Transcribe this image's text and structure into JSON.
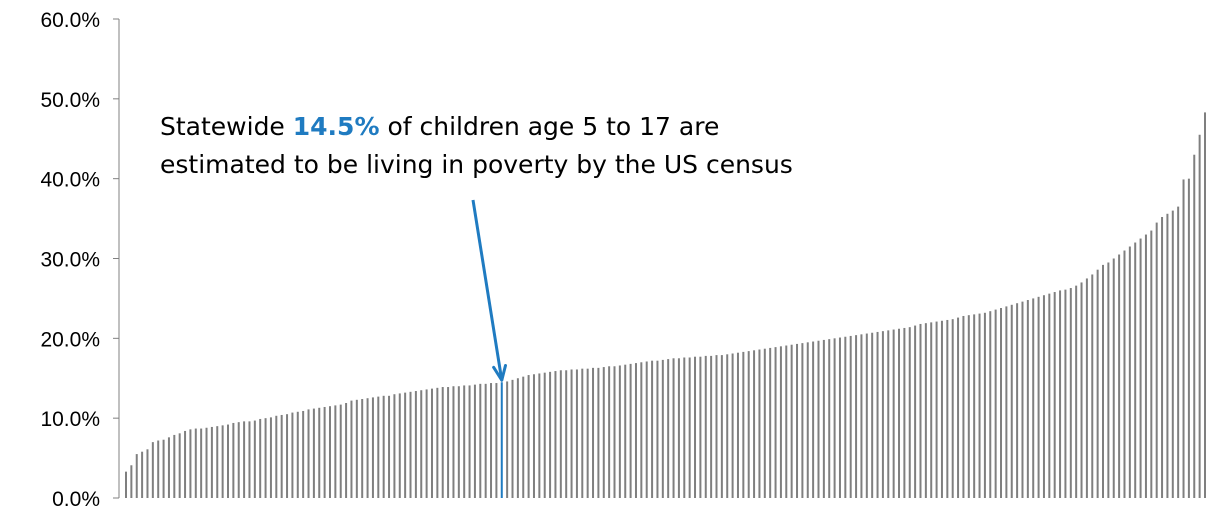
{
  "chart_data": {
    "type": "bar",
    "title": "",
    "xlabel": "",
    "ylabel": "",
    "ylim": [
      0,
      0.6
    ],
    "y_ticks": [
      {
        "value": 0.0,
        "label": "0.0%"
      },
      {
        "value": 0.1,
        "label": "10.0%"
      },
      {
        "value": 0.2,
        "label": "20.0%"
      },
      {
        "value": 0.3,
        "label": "30.0%"
      },
      {
        "value": 0.4,
        "label": "40.0%"
      },
      {
        "value": 0.5,
        "label": "50.0%"
      },
      {
        "value": 0.6,
        "label": "60.0%"
      }
    ],
    "grid": false,
    "x_tick_labels": false,
    "highlight_value": 0.145,
    "values": [
      0.033,
      0.041,
      0.055,
      0.058,
      0.061,
      0.07,
      0.072,
      0.073,
      0.076,
      0.079,
      0.081,
      0.084,
      0.086,
      0.087,
      0.087,
      0.088,
      0.089,
      0.09,
      0.091,
      0.092,
      0.094,
      0.095,
      0.096,
      0.096,
      0.097,
      0.099,
      0.1,
      0.101,
      0.103,
      0.104,
      0.105,
      0.107,
      0.108,
      0.109,
      0.111,
      0.112,
      0.113,
      0.114,
      0.115,
      0.116,
      0.117,
      0.119,
      0.122,
      0.123,
      0.124,
      0.125,
      0.126,
      0.127,
      0.128,
      0.128,
      0.13,
      0.131,
      0.132,
      0.133,
      0.134,
      0.135,
      0.136,
      0.137,
      0.138,
      0.139,
      0.139,
      0.14,
      0.14,
      0.141,
      0.141,
      0.142,
      0.143,
      0.143,
      0.144,
      0.144,
      0.145,
      0.146,
      0.148,
      0.15,
      0.152,
      0.154,
      0.155,
      0.156,
      0.157,
      0.158,
      0.159,
      0.16,
      0.16,
      0.161,
      0.161,
      0.162,
      0.162,
      0.163,
      0.163,
      0.164,
      0.165,
      0.165,
      0.166,
      0.167,
      0.168,
      0.169,
      0.17,
      0.171,
      0.172,
      0.172,
      0.173,
      0.174,
      0.175,
      0.175,
      0.176,
      0.176,
      0.177,
      0.177,
      0.178,
      0.178,
      0.179,
      0.179,
      0.18,
      0.181,
      0.182,
      0.183,
      0.184,
      0.185,
      0.186,
      0.187,
      0.188,
      0.189,
      0.19,
      0.191,
      0.192,
      0.193,
      0.194,
      0.195,
      0.196,
      0.197,
      0.198,
      0.199,
      0.2,
      0.201,
      0.202,
      0.203,
      0.204,
      0.205,
      0.206,
      0.207,
      0.208,
      0.209,
      0.21,
      0.211,
      0.212,
      0.213,
      0.214,
      0.216,
      0.218,
      0.219,
      0.22,
      0.221,
      0.222,
      0.223,
      0.224,
      0.226,
      0.228,
      0.229,
      0.23,
      0.231,
      0.232,
      0.234,
      0.236,
      0.238,
      0.24,
      0.242,
      0.244,
      0.246,
      0.248,
      0.25,
      0.252,
      0.254,
      0.256,
      0.258,
      0.26,
      0.261,
      0.263,
      0.266,
      0.27,
      0.275,
      0.28,
      0.286,
      0.292,
      0.295,
      0.3,
      0.305,
      0.31,
      0.315,
      0.32,
      0.325,
      0.33,
      0.335,
      0.345,
      0.352,
      0.356,
      0.36,
      0.365,
      0.399,
      0.4,
      0.43,
      0.455,
      0.483
    ]
  },
  "annotation": {
    "line1_prefix": "Statewide ",
    "line1_highlight": "14.5%",
    "line1_suffix": "  of children age 5 to 17 are",
    "line2": "estimated to be living in poverty by the US census"
  },
  "colors": {
    "bar": "#7F7F7F",
    "highlight": "#1F7BC1",
    "axis": "#808080",
    "text": "#000000"
  }
}
